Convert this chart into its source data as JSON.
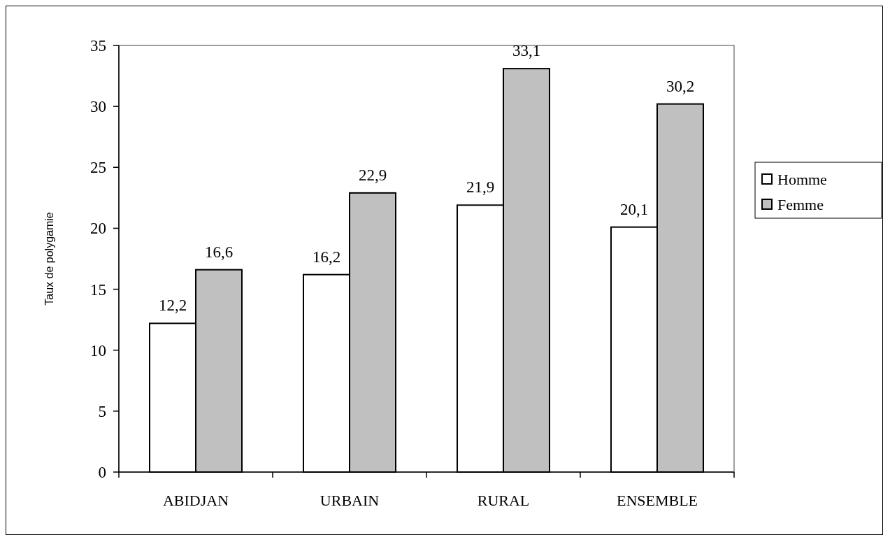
{
  "chart_data": {
    "type": "bar",
    "ylabel": "Taux de polygamie",
    "categories": [
      "ABIDJAN",
      "URBAIN",
      "RURAL",
      "ENSEMBLE"
    ],
    "series": [
      {
        "name": "Homme",
        "color": "#ffffff",
        "values": [
          12.2,
          16.2,
          21.9,
          20.1
        ],
        "value_labels": [
          "12,2",
          "16,2",
          "21,9",
          "20,1"
        ]
      },
      {
        "name": "Femme",
        "color": "#c0c0c0",
        "values": [
          16.6,
          22.9,
          33.1,
          30.2
        ],
        "value_labels": [
          "16,6",
          "22,9",
          "33,1",
          "30,2"
        ]
      }
    ],
    "ylim": [
      0,
      35
    ],
    "yticks": [
      0,
      5,
      10,
      15,
      20,
      25,
      30,
      35
    ],
    "grid": false,
    "legend": "right"
  }
}
